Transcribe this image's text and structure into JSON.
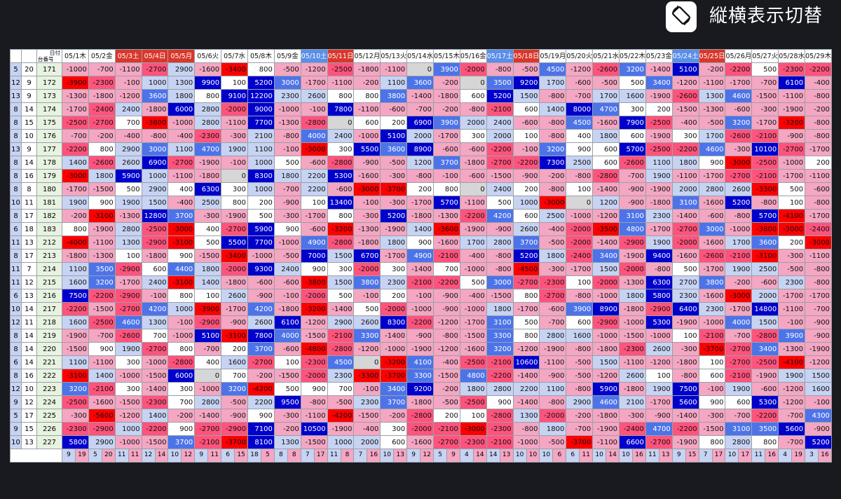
{
  "toolbar": {
    "rotate_label": "縦横表示切替",
    "rotate_icon": "screen-rotation-icon"
  },
  "corner": {
    "date_label": "日付",
    "machine_label": "台番号"
  },
  "palette": {
    "red3": "#fe0000",
    "red2": "#ff537c",
    "red1": "#f4a6c2",
    "zero": "#d6d6d6",
    "white": "#ffffff",
    "blue1": "#c7d3f3",
    "blue2": "#4d73e9",
    "blue3": "#0000cd"
  },
  "dates": [
    {
      "label": "05/1木",
      "kind": "norm"
    },
    {
      "label": "05/2金",
      "kind": "norm"
    },
    {
      "label": "05/3土",
      "kind": "hol"
    },
    {
      "label": "05/4日",
      "kind": "hol"
    },
    {
      "label": "05/5月",
      "kind": "hol"
    },
    {
      "label": "05/6火",
      "kind": "norm"
    },
    {
      "label": "05/7水",
      "kind": "norm"
    },
    {
      "label": "05/8木",
      "kind": "norm"
    },
    {
      "label": "05/9金",
      "kind": "norm"
    },
    {
      "label": "05/10土",
      "kind": "sat"
    },
    {
      "label": "05/11日",
      "kind": "hol"
    },
    {
      "label": "05/12月",
      "kind": "norm"
    },
    {
      "label": "05/13火",
      "kind": "norm"
    },
    {
      "label": "05/14水",
      "kind": "norm"
    },
    {
      "label": "05/15木",
      "kind": "norm"
    },
    {
      "label": "05/16金",
      "kind": "norm"
    },
    {
      "label": "05/17土",
      "kind": "sat"
    },
    {
      "label": "05/18日",
      "kind": "hol"
    },
    {
      "label": "05/19月",
      "kind": "norm"
    },
    {
      "label": "05/20火",
      "kind": "norm"
    },
    {
      "label": "05/21水",
      "kind": "norm"
    },
    {
      "label": "05/22木",
      "kind": "norm"
    },
    {
      "label": "05/23金",
      "kind": "norm"
    },
    {
      "label": "05/24土",
      "kind": "sat"
    },
    {
      "label": "05/25日",
      "kind": "hol"
    },
    {
      "label": "05/26月",
      "kind": "norm"
    },
    {
      "label": "05/27火",
      "kind": "norm"
    },
    {
      "label": "05/28水",
      "kind": "norm"
    },
    {
      "label": "05/29木",
      "kind": "norm"
    }
  ],
  "rows": [
    {
      "a": "5",
      "b": "20",
      "m": "171",
      "v": [
        -1000,
        -700,
        -1100,
        -2700,
        2900,
        -1600,
        -3400,
        800,
        -500,
        -1200,
        -2500,
        -1800,
        -1100,
        0,
        3900,
        -2000,
        -800,
        -500,
        4500,
        -1200,
        -2600,
        3200,
        -1400,
        5100,
        -200,
        -2200,
        500,
        -2300,
        -2200
      ]
    },
    {
      "a": "12",
      "b": "9",
      "m": "172",
      "v": [
        -3900,
        -2300,
        -100,
        1000,
        1300,
        9900,
        100,
        5200,
        3000,
        -1700,
        -1100,
        -200,
        1100,
        3600,
        -200,
        0,
        3500,
        9200,
        1700,
        -600,
        -500,
        500,
        3400,
        -1200,
        -1100,
        -1700,
        -700,
        6100,
        -400
      ]
    },
    {
      "a": "13",
      "b": "9",
      "m": "173",
      "v": [
        -1300,
        -1800,
        -1200,
        3600,
        1800,
        800,
        9100,
        12200,
        2300,
        2600,
        800,
        800,
        3800,
        -1400,
        -1800,
        600,
        5200,
        1500,
        -800,
        -700,
        1700,
        1600,
        -1900,
        -2600,
        1300,
        4600,
        -1500,
        -1100,
        -800
      ]
    },
    {
      "a": "8",
      "b": "14",
      "m": "174",
      "v": [
        -1700,
        -2400,
        2400,
        -1800,
        6000,
        2800,
        -2000,
        9000,
        -1000,
        -100,
        7800,
        -1100,
        -600,
        -700,
        -200,
        -800,
        -2100,
        600,
        1400,
        8000,
        4700,
        300,
        200,
        -1500,
        -1300,
        -600,
        -300,
        -1900,
        -200
      ]
    },
    {
      "a": "8",
      "b": "15",
      "m": "175",
      "v": [
        -2500,
        -2700,
        700,
        -3800,
        -1000,
        2800,
        -1100,
        7700,
        -1300,
        -2800,
        0,
        600,
        200,
        6900,
        3900,
        2000,
        2400,
        -600,
        -800,
        4500,
        -1600,
        7900,
        -2500,
        -400,
        -500,
        3200,
        -1700,
        -3200,
        -800
      ]
    },
    {
      "a": "8",
      "b": "10",
      "m": "176",
      "v": [
        -700,
        -200,
        -400,
        -800,
        -400,
        -2300,
        -300,
        2100,
        -800,
        4000,
        2400,
        -1000,
        5100,
        2000,
        -1700,
        300,
        2000,
        100,
        -800,
        400,
        1800,
        600,
        -1900,
        300,
        1700,
        -2600,
        -2100,
        -900,
        -800
      ]
    },
    {
      "a": "13",
      "b": "9",
      "m": "177",
      "v": [
        -2200,
        800,
        2900,
        3000,
        1100,
        4700,
        1900,
        1100,
        -100,
        -3000,
        300,
        5500,
        3600,
        8900,
        -600,
        -600,
        -2200,
        -100,
        3200,
        900,
        600,
        5700,
        -2500,
        -2200,
        4600,
        -300,
        10100,
        -2700,
        -1700
      ]
    },
    {
      "a": "8",
      "b": "14",
      "m": "178",
      "v": [
        1400,
        -2600,
        2600,
        6900,
        -2700,
        -1900,
        -100,
        1000,
        500,
        -600,
        -2800,
        -900,
        -500,
        1200,
        3700,
        -1800,
        -2700,
        -2200,
        7300,
        2500,
        600,
        -2600,
        1100,
        1800,
        900,
        -3000,
        -2500,
        -1000,
        200
      ]
    },
    {
      "a": "8",
      "b": "16",
      "m": "179",
      "v": [
        -3000,
        1800,
        5900,
        1000,
        -1100,
        -1800,
        0,
        8300,
        1800,
        2200,
        5300,
        -1600,
        -300,
        -800,
        -100,
        -600,
        -1500,
        -900,
        -200,
        -800,
        -2800,
        -700,
        1900,
        -1100,
        -1700,
        -2700,
        -2100,
        -1700,
        -1100
      ]
    },
    {
      "a": "8",
      "b": "8",
      "m": "180",
      "v": [
        -1700,
        -1500,
        500,
        2900,
        400,
        6300,
        300,
        1000,
        -700,
        2200,
        -600,
        -3000,
        -3700,
        200,
        800,
        0,
        2400,
        200,
        -800,
        100,
        -1400,
        -900,
        -1900,
        2000,
        2800,
        2600,
        -3300,
        500,
        -600
      ]
    },
    {
      "a": "10",
      "b": "11",
      "m": "181",
      "v": [
        1900,
        900,
        1900,
        1500,
        -400,
        2500,
        800,
        200,
        -900,
        100,
        13400,
        -100,
        -300,
        -1700,
        5700,
        -1100,
        500,
        1000,
        -3000,
        0,
        1200,
        -900,
        -1800,
        3100,
        -1600,
        5200,
        -800,
        100,
        -800
      ]
    },
    {
      "a": "8",
      "b": "17",
      "m": "182",
      "v": [
        -200,
        -3100,
        -1300,
        12800,
        3700,
        -300,
        -1900,
        500,
        -300,
        -1700,
        800,
        -300,
        5200,
        -1800,
        -1300,
        -2200,
        4200,
        600,
        2500,
        -1000,
        -1200,
        3100,
        2300,
        -1400,
        -600,
        -800,
        5700,
        -4100,
        -1700
      ]
    },
    {
      "a": "6",
      "b": "18",
      "m": "183",
      "v": [
        800,
        -1900,
        2800,
        -2500,
        -3000,
        400,
        -2700,
        5900,
        900,
        -600,
        -3200,
        -1300,
        -1900,
        1400,
        -3600,
        -1900,
        -900,
        2600,
        -400,
        -2000,
        -3500,
        4800,
        -1700,
        -2700,
        3000,
        -1000,
        -3800,
        -3000,
        -2400
      ]
    },
    {
      "a": "11",
      "b": "13",
      "m": "212",
      "v": [
        -4000,
        -1100,
        1300,
        -2900,
        -3100,
        500,
        5500,
        7700,
        -1000,
        4900,
        -2800,
        -1800,
        1800,
        900,
        -1600,
        1700,
        2800,
        3700,
        -500,
        -2000,
        -1400,
        -2900,
        1900,
        -2000,
        -1600,
        1700,
        3600,
        200,
        -3000
      ]
    },
    {
      "a": "8",
      "b": "17",
      "m": "213",
      "v": [
        -1800,
        -1300,
        100,
        -1800,
        900,
        -1500,
        -3400,
        -1000,
        -500,
        7000,
        1500,
        6700,
        -1700,
        4900,
        -2100,
        -400,
        -800,
        5200,
        1800,
        -2400,
        3400,
        -1900,
        9400,
        -1600,
        -2600,
        -2100,
        -3100,
        -300,
        -1100
      ]
    },
    {
      "a": "11",
      "b": "7",
      "m": "214",
      "v": [
        1100,
        3500,
        -2900,
        600,
        4400,
        1800,
        -2000,
        9300,
        2400,
        900,
        300,
        -2000,
        300,
        -1400,
        700,
        -1000,
        -800,
        -4500,
        -300,
        -1700,
        1500,
        -2000,
        -800,
        500,
        -1700,
        1900,
        2500,
        -500,
        -800
      ]
    },
    {
      "a": "11",
      "b": "12",
      "m": "215",
      "v": [
        1600,
        3200,
        -1700,
        2400,
        -3100,
        1400,
        -1800,
        -600,
        -600,
        -3800,
        1500,
        3800,
        2300,
        -2100,
        -2200,
        500,
        3000,
        -2700,
        -2300,
        100,
        -2000,
        -1300,
        6300,
        2700,
        3800,
        -200,
        -600,
        2300,
        -800
      ]
    },
    {
      "a": "6",
      "b": "13",
      "m": "216",
      "v": [
        7500,
        -2200,
        -2900,
        -100,
        800,
        100,
        2600,
        -900,
        -100,
        -2000,
        500,
        -100,
        200,
        -100,
        -900,
        -400,
        -1500,
        800,
        -2700,
        -800,
        -1000,
        1800,
        5800,
        2300,
        -1600,
        -3000,
        2000,
        -1700,
        -1700
      ]
    },
    {
      "a": "10",
      "b": "14",
      "m": "217",
      "v": [
        -2200,
        -1500,
        -2700,
        4200,
        1000,
        -3900,
        -1700,
        4200,
        -1800,
        -3200,
        -1400,
        500,
        -2000,
        -1000,
        -900,
        -1000,
        1800,
        -1700,
        -600,
        3900,
        8900,
        -1800,
        -2900,
        6400,
        2300,
        -1700,
        14800,
        -1100,
        -700
      ]
    },
    {
      "a": "12",
      "b": "11",
      "m": "218",
      "v": [
        1600,
        -2500,
        4600,
        1300,
        -100,
        -2900,
        -900,
        2600,
        6100,
        -1200,
        2900,
        2600,
        8300,
        -2200,
        -1200,
        -1700,
        3100,
        500,
        -700,
        600,
        -2900,
        -1000,
        5300,
        -1900,
        -1000,
        4000,
        1500,
        -100,
        -900
      ]
    },
    {
      "a": "8",
      "b": "14",
      "m": "219",
      "v": [
        -1900,
        -700,
        -2600,
        700,
        -1000,
        5100,
        -3100,
        7800,
        4000,
        -1500,
        -2100,
        3300,
        -1400,
        -900,
        -800,
        -1500,
        3300,
        800,
        2800,
        1600,
        -1000,
        -1500,
        -1000,
        100,
        -2100,
        -700,
        -2800,
        3900,
        -900
      ]
    },
    {
      "a": "8",
      "b": "14",
      "m": "220",
      "v": [
        -1500,
        900,
        1900,
        -2700,
        800,
        -700,
        200,
        3700,
        -600,
        -4800,
        -2800,
        -1200,
        -1000,
        -1900,
        -1200,
        -1600,
        3200,
        -1200,
        -1900,
        -800,
        -1800,
        -2300,
        2600,
        -300,
        -3700,
        -2700,
        3400,
        -1300,
        -1900
      ]
    },
    {
      "a": "6",
      "b": "14",
      "m": "221",
      "v": [
        1100,
        -1100,
        300,
        -1000,
        -2800,
        400,
        1600,
        -2700,
        100,
        -2300,
        4500,
        0,
        -3200,
        4100,
        -400,
        -2500,
        -2100,
        10600,
        -1100,
        -500,
        1500,
        -1100,
        -1200,
        -1800,
        100,
        -2700,
        -2500,
        -4100,
        -1200
      ]
    },
    {
      "a": "8",
      "b": "16",
      "m": "222",
      "v": [
        -3100,
        1400,
        -1000,
        -1500,
        6000,
        0,
        700,
        -200,
        -1500,
        -2000,
        2300,
        -3300,
        -3700,
        3300,
        -1500,
        4800,
        -2200,
        -1400,
        -900,
        -500,
        -1200,
        2600,
        100,
        -800,
        600,
        -2100,
        -1900,
        1900,
        1500
      ]
    },
    {
      "a": "12",
      "b": "10",
      "m": "223",
      "v": [
        3200,
        -2100,
        300,
        -1400,
        300,
        -1000,
        3200,
        -4200,
        500,
        900,
        700,
        -100,
        3400,
        9200,
        -200,
        1800,
        2800,
        2200,
        1100,
        -800,
        5900,
        -1800,
        1900,
        7500,
        -100,
        1900,
        -600,
        -1200,
        1600
      ]
    },
    {
      "a": "9",
      "b": "12",
      "m": "224",
      "v": [
        -2500,
        -1600,
        -1500,
        -2300,
        700,
        2800,
        -500,
        2200,
        9500,
        -800,
        -500,
        2300,
        3700,
        -1800,
        -500,
        -2500,
        900,
        -1400,
        -800,
        2900,
        4600,
        2100,
        -1700,
        5600,
        900,
        600,
        5300,
        -1200,
        -100
      ]
    },
    {
      "a": "5",
      "b": "17",
      "m": "225",
      "v": [
        -300,
        -5600,
        -1200,
        1400,
        -200,
        -1400,
        -900,
        900,
        -300,
        -1100,
        -4200,
        -1500,
        -200,
        -2800,
        200,
        100,
        -2800,
        1300,
        -2000,
        -200,
        -1800,
        -300,
        -900,
        -1400,
        -300,
        -700,
        -2200,
        -700,
        4300
      ]
    },
    {
      "a": "9",
      "b": "15",
      "m": "226",
      "v": [
        -2300,
        -2900,
        1000,
        -2200,
        900,
        -2700,
        -2900,
        7100,
        -200,
        10500,
        -1900,
        -400,
        300,
        -2000,
        -2100,
        -3000,
        -2300,
        -800,
        1800,
        -700,
        -1900,
        -2400,
        4700,
        -2200,
        -1500,
        3100,
        3500,
        5600,
        -900
      ]
    },
    {
      "a": "10",
      "b": "13",
      "m": "227",
      "v": [
        5800,
        2900,
        -1000,
        -1500,
        3700,
        -2100,
        -3700,
        8100,
        1300,
        -1500,
        1000,
        2000,
        600,
        -1600,
        -2700,
        -2300,
        -2100,
        -1000,
        -500,
        -3700,
        -1100,
        6600,
        -2700,
        -1900,
        800,
        2800,
        800,
        -700,
        5200
      ]
    }
  ],
  "footer": [
    [
      9,
      19
    ],
    [
      5,
      20
    ],
    [
      11,
      11
    ],
    [
      12,
      14
    ],
    [
      10,
      12
    ],
    [
      9,
      11
    ],
    [
      6,
      15
    ],
    [
      18,
      5
    ],
    [
      8,
      8
    ],
    [
      7,
      17
    ],
    [
      11,
      8
    ],
    [
      7,
      16
    ],
    [
      10,
      13
    ],
    [
      9,
      12
    ],
    [
      5,
      9
    ],
    [
      4,
      14
    ],
    [
      14,
      13
    ],
    [
      10,
      10
    ],
    [
      10,
      6
    ],
    [
      6,
      11
    ],
    [
      10,
      14
    ],
    [
      10,
      16
    ],
    [
      11,
      13
    ],
    [
      9,
      15
    ],
    [
      7,
      17
    ],
    [
      10,
      17
    ],
    [
      11,
      16
    ],
    [
      4,
      19
    ],
    [
      3,
      16
    ]
  ]
}
